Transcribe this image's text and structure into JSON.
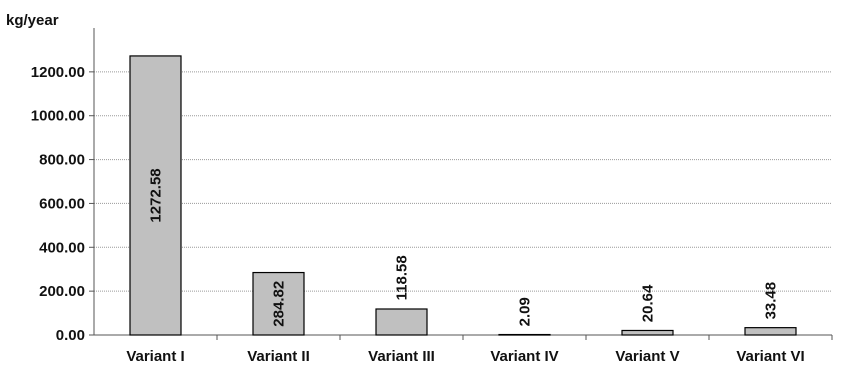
{
  "chart_data": {
    "type": "bar",
    "unit_label": "kg/year",
    "categories": [
      "Variant I",
      "Variant II",
      "Variant III",
      "Variant IV",
      "Variant V",
      "Variant VI"
    ],
    "values": [
      1272.58,
      284.82,
      118.58,
      2.09,
      20.64,
      33.48
    ],
    "value_labels": [
      "1272.58",
      "284.82",
      "118.58",
      "2.09",
      "20.64",
      "33.48"
    ],
    "yticks": [
      "0.00",
      "200.00",
      "400.00",
      "600.00",
      "800.00",
      "1000.00",
      "1200.00"
    ],
    "ylim": [
      0,
      1400
    ],
    "grid": true,
    "legend": "none",
    "colors": {
      "bar": "#c0c0c0",
      "bar_edge": "#000000",
      "grid": "#9a9a9a",
      "axis": "#555555"
    }
  }
}
